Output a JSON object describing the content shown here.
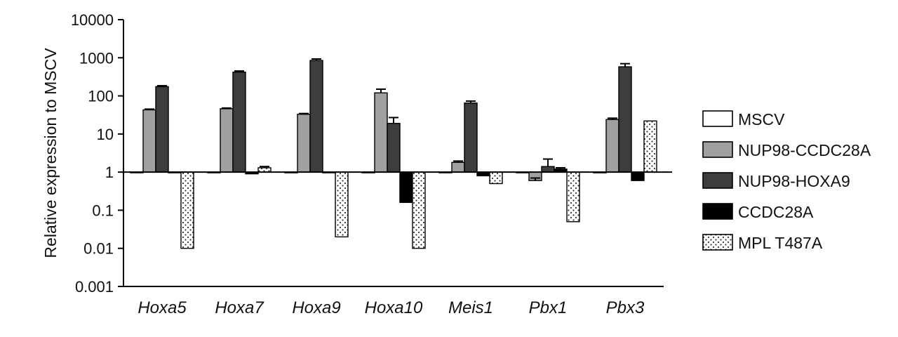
{
  "chart_data": {
    "type": "bar",
    "ylabel": "Relative expression to MSCV",
    "yscale": "log",
    "ylim": [
      0.001,
      10000
    ],
    "yticks": [
      "10000",
      "1000",
      "100",
      "10",
      "1",
      "0.1",
      "0.01",
      "0.001"
    ],
    "ytick_values": [
      10000,
      1000,
      100,
      10,
      1,
      0.1,
      0.01,
      0.001
    ],
    "reference_line": 1,
    "categories": [
      "Hoxa5",
      "Hoxa7",
      "Hoxa9",
      "Hoxa10",
      "Meis1",
      "Pbx1",
      "Pbx3"
    ],
    "series": [
      {
        "name": "MSCV",
        "fill": "white",
        "values": [
          1,
          1,
          1,
          1,
          1,
          1,
          1
        ],
        "errors": [
          0,
          0,
          0,
          0,
          0,
          0,
          0
        ]
      },
      {
        "name": "NUP98-CCDC28A",
        "fill": "#a0a0a0",
        "values": [
          43,
          46,
          33,
          120,
          1.8,
          0.6,
          24
        ],
        "errors": [
          2,
          2,
          1.5,
          30,
          0.15,
          0.1,
          2
        ]
      },
      {
        "name": "NUP98-HOXA9",
        "fill": "#3d3d3d",
        "values": [
          175,
          420,
          850,
          19,
          65,
          1.4,
          580
        ],
        "errors": [
          10,
          30,
          80,
          8,
          8,
          0.8,
          120
        ]
      },
      {
        "name": "CCDC28A",
        "fill": "#000000",
        "values": [
          1,
          0.9,
          1,
          0.16,
          0.8,
          1.2,
          0.6
        ],
        "errors": [
          0,
          0,
          0,
          0,
          0,
          0.1,
          0
        ]
      },
      {
        "name": "MPL T487A",
        "fill": "dots",
        "values": [
          0.01,
          1.3,
          0.02,
          0.01,
          0.5,
          0.05,
          22
        ],
        "errors": [
          0,
          0.1,
          0,
          0,
          0,
          0,
          0
        ]
      }
    ],
    "legend_position": "right",
    "grid": false
  }
}
